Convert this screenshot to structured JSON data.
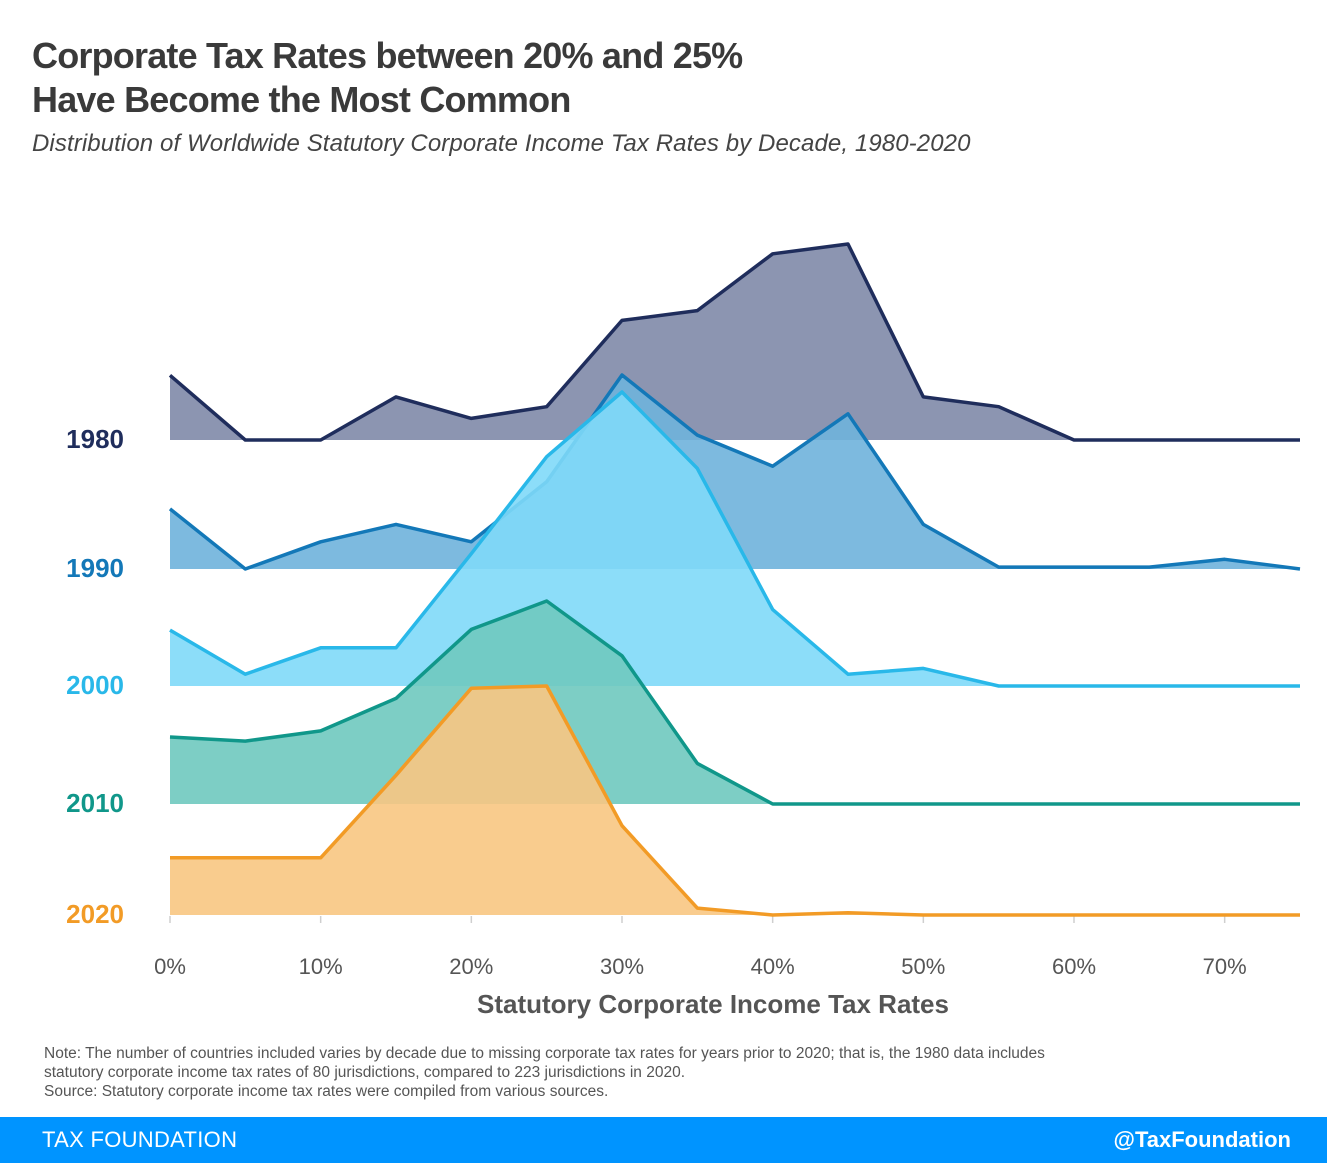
{
  "title": {
    "line1": "Corporate Tax Rates between 20% and 25%",
    "line2": "Have Become the Most Common"
  },
  "subtitle": "Distribution of Worldwide Statutory Corporate Income Tax Rates by Decade, 1980-2020",
  "chart_data": {
    "type": "area",
    "title": "Corporate Tax Rates between 20% and 25% Have Become the Most Common",
    "subtitle": "Distribution of Worldwide Statutory Corporate Income Tax Rates by Decade, 1980-2020",
    "xlabel": "Statutory Corporate Income Tax Rates",
    "ylabel": "",
    "x": [
      0,
      5,
      10,
      15,
      20,
      25,
      30,
      35,
      40,
      45,
      50,
      55,
      60,
      65,
      70,
      75
    ],
    "xlim": [
      0,
      75
    ],
    "xticks": [
      0,
      10,
      20,
      30,
      40,
      50,
      60,
      70
    ],
    "xtick_labels": [
      "0%",
      "10%",
      "20%",
      "30%",
      "40%",
      "50%",
      "60%",
      "70%"
    ],
    "ylim": [
      0,
      1
    ],
    "grid": false,
    "legend": "row labels at left",
    "series": [
      {
        "name": "1980",
        "color": "#1f2d5c",
        "fill": "#808aa8",
        "values": [
          0.33,
          0.0,
          0.0,
          0.22,
          0.11,
          0.17,
          0.61,
          0.66,
          0.95,
          1.0,
          0.22,
          0.17,
          0.0,
          0.0,
          0.0,
          0.0
        ]
      },
      {
        "name": "1990",
        "color": "#1378b8",
        "fill": "#6fb3dc",
        "values": [
          0.31,
          0.0,
          0.14,
          0.23,
          0.14,
          0.45,
          1.0,
          0.69,
          0.53,
          0.8,
          0.23,
          0.01,
          0.01,
          0.01,
          0.05,
          0.0
        ]
      },
      {
        "name": "2000",
        "color": "#29b8e9",
        "fill": "#7fd9f8",
        "values": [
          0.19,
          0.04,
          0.13,
          0.13,
          0.45,
          0.78,
          1.0,
          0.74,
          0.26,
          0.04,
          0.06,
          0.0,
          0.0,
          0.0,
          0.0,
          0.0
        ]
      },
      {
        "name": "2010",
        "color": "#10978a",
        "fill": "#6fc9bf",
        "values": [
          0.33,
          0.31,
          0.36,
          0.52,
          0.86,
          1.0,
          0.73,
          0.2,
          0.0,
          0.0,
          0.0,
          0.0,
          0.0,
          0.0,
          0.0,
          0.0
        ]
      },
      {
        "name": "2020",
        "color": "#f29b26",
        "fill": "#f8c782",
        "values": [
          0.25,
          0.25,
          0.25,
          0.61,
          0.99,
          1.0,
          0.39,
          0.03,
          0.0,
          0.01,
          0.0,
          0.0,
          0.0,
          0.0,
          0.0,
          0.0
        ]
      }
    ]
  },
  "notes": {
    "line1": "Note: The number of countries included varies by decade due to missing corporate tax rates for years prior to 2020; that is, the 1980 data includes",
    "line2": "statutory corporate income tax rates of 80 jurisdictions, compared to 223 jurisdictions in 2020.",
    "line3": "Source: Statutory corporate income tax rates were compiled from various sources."
  },
  "footer": {
    "brand": "TAX FOUNDATION",
    "handle": "@TaxFoundation"
  },
  "colors": {
    "footer_bg": "#0094ff",
    "text": "#424242"
  }
}
